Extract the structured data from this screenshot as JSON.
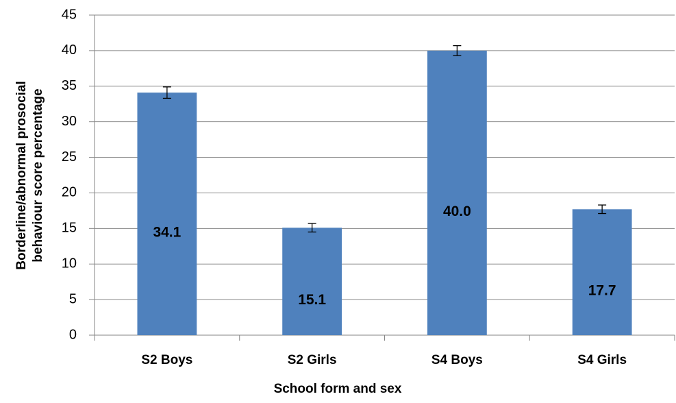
{
  "chart_data": {
    "type": "bar",
    "x_label": "School form and sex",
    "y_label": [
      "Borderline/abnormal prosocial",
      "behaviour score percentage"
    ],
    "categories": [
      "S2 Boys",
      "S2 Girls",
      "S4 Boys",
      "S4 Girls"
    ],
    "values": [
      34.1,
      15.1,
      40.0,
      17.7
    ],
    "value_labels": [
      "34.1",
      "15.1",
      "40.0",
      "17.7"
    ],
    "errors": [
      0.8,
      0.6,
      0.7,
      0.6
    ],
    "color": "#4f81bd",
    "ylim": [
      0,
      45
    ],
    "yticks": [
      0,
      5,
      10,
      15,
      20,
      25,
      30,
      35,
      40,
      45
    ],
    "grid": true
  }
}
